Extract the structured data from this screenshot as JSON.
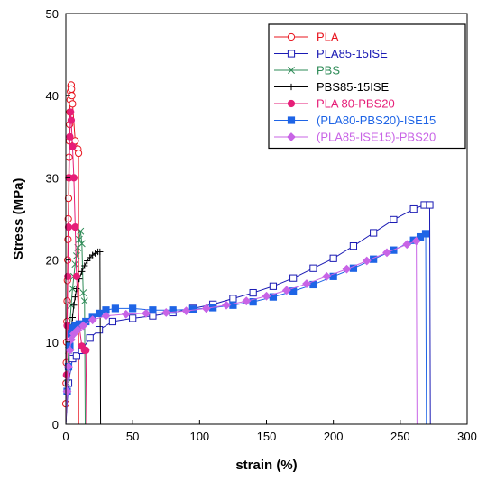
{
  "chart_data": {
    "type": "line",
    "title": "",
    "xlabel": "strain (%)",
    "ylabel": "Stress (MPa)",
    "xlim": [
      0,
      300
    ],
    "ylim": [
      0,
      50
    ],
    "xticks": [
      "0",
      "50",
      "100",
      "150",
      "200",
      "250",
      "300"
    ],
    "yticks": [
      "0",
      "10",
      "20",
      "30",
      "40",
      "50"
    ],
    "grid": false,
    "legend_position": "top-right",
    "series": [
      {
        "name": "PLA",
        "color": "#e8141e",
        "marker": "open-circle",
        "x": [
          0.0,
          0.2,
          0.4,
          0.6,
          0.8,
          1.0,
          1.2,
          1.4,
          1.6,
          1.8,
          2.0,
          2.2,
          2.4,
          2.6,
          2.8,
          3.0,
          3.2,
          3.5,
          3.8,
          4.0,
          4.2,
          4.5,
          5.0,
          7.0,
          9.0,
          9.5,
          9.6
        ],
        "y": [
          2.5,
          5.0,
          7.5,
          10.0,
          12.5,
          15.0,
          17.5,
          20.0,
          22.5,
          25.0,
          27.5,
          30.0,
          32.5,
          34.5,
          36.5,
          38.0,
          39.5,
          40.5,
          41.2,
          41.3,
          40.8,
          40.0,
          39.0,
          34.5,
          33.5,
          33.0,
          0.0
        ]
      },
      {
        "name": "PLA85-15ISE",
        "color": "#1a1ab4",
        "marker": "open-square",
        "x": [
          0,
          2,
          5,
          8,
          12,
          18,
          25,
          35,
          50,
          65,
          80,
          95,
          110,
          125,
          140,
          155,
          170,
          185,
          200,
          215,
          230,
          245,
          260,
          268,
          272,
          272.5
        ],
        "y": [
          0,
          5.0,
          8.0,
          8.3,
          9.0,
          10.5,
          11.5,
          12.5,
          12.9,
          13.2,
          13.6,
          14.1,
          14.6,
          15.3,
          16.0,
          16.8,
          17.8,
          19.0,
          20.2,
          21.7,
          23.3,
          24.9,
          26.2,
          26.7,
          26.7,
          0
        ]
      },
      {
        "name": "PBS",
        "color": "#2e8b57",
        "marker": "x",
        "x": [
          0,
          1,
          2,
          3,
          4,
          5,
          6,
          7,
          8,
          9,
          10,
          11,
          12,
          13,
          14,
          14.5
        ],
        "y": [
          0,
          5.0,
          9.0,
          12.0,
          14.5,
          16.5,
          18.0,
          19.5,
          20.5,
          21.5,
          22.5,
          23.5,
          22.0,
          16.0,
          15.0,
          0
        ]
      },
      {
        "name": "PBS85-15ISE",
        "color": "#000000",
        "marker": "plus",
        "x": [
          0,
          1,
          2,
          3,
          4,
          5,
          6,
          7,
          8,
          10,
          12,
          14,
          16,
          18,
          20,
          22,
          24,
          25.5,
          26
        ],
        "y": [
          0,
          4.0,
          7.0,
          9.5,
          11.5,
          13.0,
          14.5,
          15.5,
          16.5,
          17.7,
          18.6,
          19.3,
          19.9,
          20.3,
          20.6,
          20.8,
          21.0,
          21.0,
          0
        ]
      },
      {
        "name": "PLA 80-PBS20",
        "color": "#e61e78",
        "marker": "filled-circle",
        "x": [
          0,
          0.5,
          1,
          1.5,
          2,
          2.5,
          3,
          3.5,
          4,
          5,
          6,
          7,
          8,
          10,
          12,
          14,
          15,
          15.5
        ],
        "y": [
          0,
          6.0,
          12.0,
          18.0,
          24.0,
          30.0,
          35.0,
          38.0,
          37.0,
          33.8,
          30.0,
          24.0,
          18.0,
          12.0,
          9.5,
          9.0,
          9.0,
          0
        ]
      },
      {
        "name": "(PLA80-PBS20)-ISE15",
        "color": "#1e64e6",
        "marker": "filled-square",
        "x": [
          0,
          1,
          2,
          3,
          4,
          5,
          7,
          10,
          15,
          20,
          25,
          30,
          37,
          50,
          65,
          80,
          95,
          110,
          125,
          140,
          155,
          170,
          185,
          200,
          215,
          230,
          245,
          260,
          265,
          269,
          269.5
        ],
        "y": [
          0,
          4.0,
          7.0,
          9.5,
          11.0,
          11.7,
          12.0,
          12.2,
          12.5,
          13.0,
          13.5,
          13.9,
          14.1,
          14.1,
          13.9,
          13.9,
          14.0,
          14.2,
          14.5,
          14.9,
          15.5,
          16.2,
          17.0,
          18.0,
          19.0,
          20.1,
          21.2,
          22.4,
          22.8,
          23.2,
          0
        ]
      },
      {
        "name": "(PLA85-ISE15)-PBS20",
        "color": "#c864e6",
        "marker": "filled-diamond",
        "x": [
          0,
          1,
          2,
          3,
          4,
          6,
          9,
          13,
          20,
          30,
          45,
          60,
          75,
          90,
          105,
          120,
          135,
          150,
          165,
          180,
          195,
          210,
          225,
          240,
          255,
          262,
          262.5
        ],
        "y": [
          0,
          4.0,
          7.0,
          9.0,
          10.3,
          11.0,
          11.5,
          12.0,
          12.7,
          13.2,
          13.4,
          13.5,
          13.6,
          13.8,
          14.1,
          14.5,
          15.0,
          15.6,
          16.3,
          17.1,
          18.0,
          18.9,
          19.9,
          20.9,
          21.9,
          22.3,
          0
        ]
      }
    ]
  }
}
